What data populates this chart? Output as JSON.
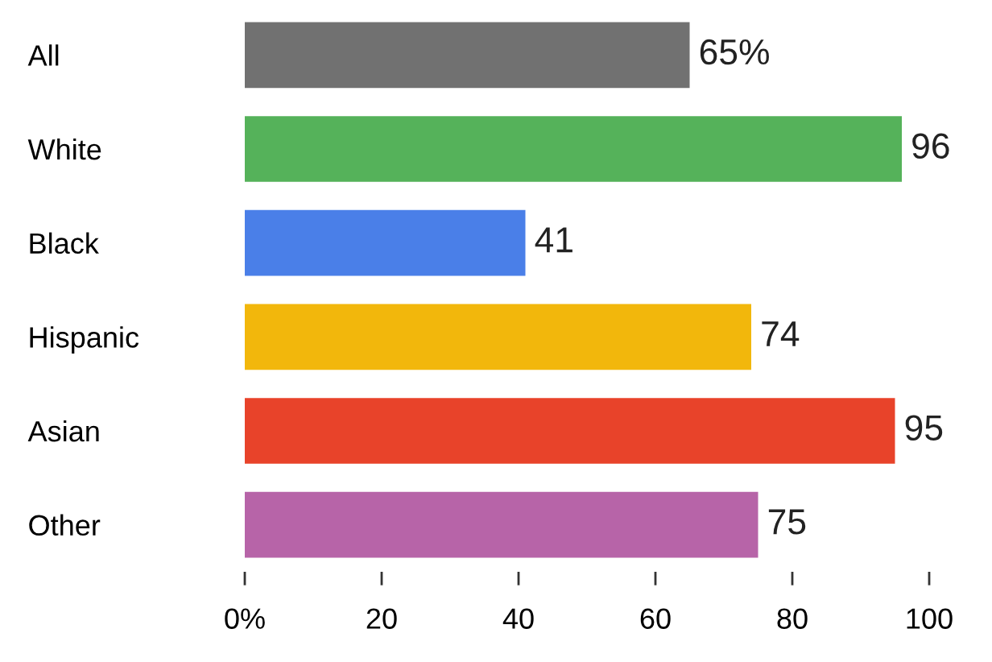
{
  "chart_data": {
    "type": "bar",
    "orientation": "horizontal",
    "categories": [
      "All",
      "White",
      "Black",
      "Hispanic",
      "Asian",
      "Other"
    ],
    "values": [
      65,
      96,
      41,
      74,
      95,
      75
    ],
    "colors": [
      "#717171",
      "#55b25a",
      "#4a7fe8",
      "#f2b70c",
      "#e8432a",
      "#b764a8"
    ],
    "value_labels": [
      "65%",
      "96",
      "41",
      "74",
      "95",
      "75"
    ],
    "xlim": [
      0,
      100
    ],
    "xticks": [
      {
        "value": 0,
        "label": "0%"
      },
      20,
      40,
      60,
      80,
      100
    ],
    "grid": false,
    "legend": false
  }
}
